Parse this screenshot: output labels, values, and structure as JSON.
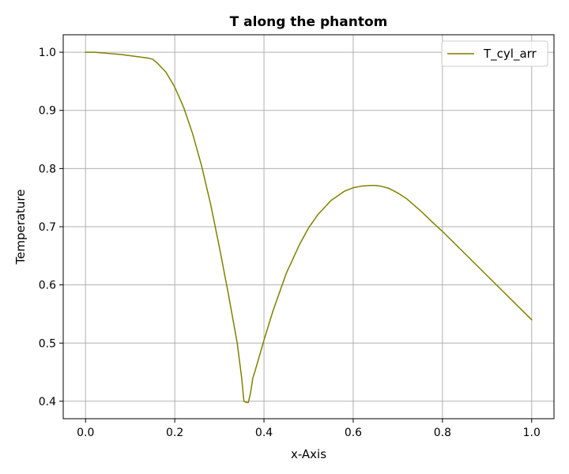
{
  "chart_data": {
    "type": "line",
    "title": "T along the phantom",
    "xlabel": "x-Axis",
    "ylabel": "Temperature",
    "xlim": [
      -0.05,
      1.05
    ],
    "ylim": [
      0.37,
      1.03
    ],
    "xticks": [
      0.0,
      0.2,
      0.4,
      0.6,
      0.8,
      1.0
    ],
    "xtick_labels": [
      "0.0",
      "0.2",
      "0.4",
      "0.6",
      "0.8",
      "1.0"
    ],
    "yticks": [
      0.4,
      0.5,
      0.6,
      0.7,
      0.8,
      0.9,
      1.0
    ],
    "ytick_labels": [
      "0.4",
      "0.5",
      "0.6",
      "0.7",
      "0.8",
      "0.9",
      "1.0"
    ],
    "grid": true,
    "legend_position": "top-right",
    "series": [
      {
        "name": "T_cyl_arr",
        "color": "#808000",
        "x": [
          0.0,
          0.02,
          0.05,
          0.08,
          0.1,
          0.12,
          0.14,
          0.15,
          0.16,
          0.18,
          0.2,
          0.22,
          0.24,
          0.26,
          0.28,
          0.3,
          0.32,
          0.34,
          0.35,
          0.355,
          0.36,
          0.365,
          0.37,
          0.375,
          0.38,
          0.4,
          0.42,
          0.45,
          0.48,
          0.5,
          0.52,
          0.55,
          0.58,
          0.6,
          0.62,
          0.64,
          0.65,
          0.66,
          0.68,
          0.7,
          0.72,
          0.75,
          0.78,
          0.8,
          0.85,
          0.9,
          0.95,
          1.0
        ],
        "y": [
          1.0,
          1.0,
          0.998,
          0.996,
          0.994,
          0.992,
          0.99,
          0.988,
          0.982,
          0.966,
          0.94,
          0.905,
          0.86,
          0.805,
          0.74,
          0.665,
          0.585,
          0.5,
          0.44,
          0.4,
          0.398,
          0.398,
          0.415,
          0.44,
          0.452,
          0.505,
          0.555,
          0.62,
          0.67,
          0.698,
          0.72,
          0.745,
          0.761,
          0.767,
          0.77,
          0.771,
          0.771,
          0.77,
          0.766,
          0.758,
          0.748,
          0.728,
          0.706,
          0.692,
          0.654,
          0.616,
          0.578,
          0.54
        ]
      }
    ]
  }
}
